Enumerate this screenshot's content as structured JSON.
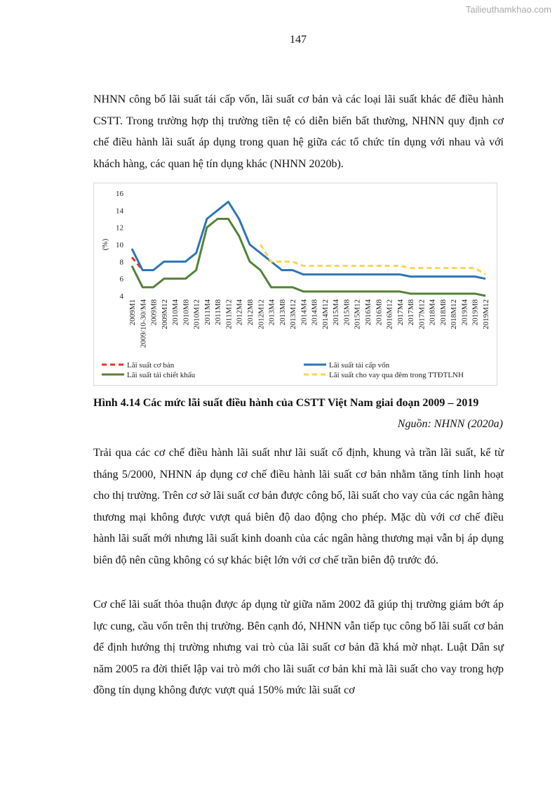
{
  "watermark": "Tailieuthamkhao.com",
  "page_number": "147",
  "paragraphs_before": [
    "NHNN công bố lãi suất tái cấp vốn, lãi suất cơ bản và các loại lãi suất khác để điều hành CSTT. Trong trường hợp thị trường tiền tệ có diễn biến bất thường, NHNN quy định cơ chế điều hành lãi suất áp dụng trong quan hệ giữa các tổ chức tín dụng với nhau và với khách hàng, các quan hệ tín dụng khác (NHNN 2020b)."
  ],
  "caption": "Hình 4.14 Các mức lãi suất điều hành của CSTT Việt Nam giai đoạn 2009 – 2019",
  "source": "Nguồn: NHNN (2020a)",
  "paragraphs_after": [
    "Trải qua các cơ chế điều hành lãi suất như lãi suất cố định, khung và trần lãi suất, kể từ tháng 5/2000, NHNN áp dụng cơ chế điều hành lãi suất cơ bản nhằm tăng tính linh hoạt cho thị trường. Trên cơ sở lãi suất cơ bản được công bố, lãi suất cho vay của các ngân hàng thương mại không được vượt quá biên độ dao động cho phép. Mặc dù với cơ chế điều hành lãi suất mới nhưng lãi suất kinh doanh của các ngân hàng thương mại vẫn bị áp dụng biên độ nên cũng không có sự khác biệt lớn với cơ chế trần biên độ trước đó.",
    "Cơ chế lãi suất thỏa thuận được áp dụng từ giữa năm 2002 đã giúp thị trường giảm bớt áp lực cung, cầu vốn trên thị trường. Bên cạnh đó, NHNN vẫn tiếp tục công bố lãi suất cơ bản để định hướng thị trường nhưng vai trò của lãi suất cơ bản đã khá mờ nhạt. Luật Dân sự năm 2005 ra đời thiết lập vai trò mới cho lãi suất cơ bản khi mà lãi suất cho vay trong hợp đồng tín dụng không được vượt quá 150% mức lãi suất cơ"
  ],
  "chart_data": {
    "type": "line",
    "y_label": "(%)",
    "categories": [
      "2009M1",
      "2009/10-30/M4",
      "2009M8",
      "2009M12",
      "2010M4",
      "2010M8",
      "2010M12",
      "2011M4",
      "2011M8",
      "2011M12",
      "2012M4",
      "2012M8",
      "2012M12",
      "2013M4",
      "2013M8",
      "2013M12",
      "2014M4",
      "2014M8",
      "2014M12",
      "2015M4",
      "2015M8",
      "2015M12",
      "2016M4",
      "2016M8",
      "2016M12",
      "2017M4",
      "2017M8",
      "2017M12",
      "2018M4",
      "2018M8",
      "2018M12",
      "2019M4",
      "2019M8",
      "2019M12"
    ],
    "ylim": [
      4,
      16
    ],
    "yticks": [
      4,
      6,
      8,
      10,
      12,
      14,
      16
    ],
    "grid": false,
    "series": [
      {
        "name": "Lãi suất cơ bản",
        "color": "#e8322c",
        "style": "dashed",
        "values": [
          8.5,
          7,
          null,
          null,
          null,
          null,
          null,
          null,
          null,
          null,
          null,
          null,
          null,
          null,
          null,
          null,
          null,
          null,
          null,
          null,
          null,
          null,
          null,
          null,
          null,
          null,
          null,
          null,
          null,
          null,
          null,
          null,
          null,
          null
        ]
      },
      {
        "name": "Lãi suất tái cấp vốn",
        "color": "#2e75b6",
        "style": "solid",
        "values": [
          9.5,
          7,
          7,
          8,
          8,
          8,
          9,
          13,
          14,
          15,
          13,
          10,
          9,
          8,
          7,
          7,
          6.5,
          6.5,
          6.5,
          6.5,
          6.5,
          6.5,
          6.5,
          6.5,
          6.5,
          6.5,
          6.25,
          6.25,
          6.25,
          6.25,
          6.25,
          6.25,
          6.25,
          6
        ]
      },
      {
        "name": "Lãi suất tái chiết khấu",
        "color": "#548235",
        "style": "solid",
        "values": [
          7.5,
          5,
          5,
          6,
          6,
          6,
          7,
          12,
          13,
          13,
          11,
          8,
          7,
          5,
          5,
          5,
          4.5,
          4.5,
          4.5,
          4.5,
          4.5,
          4.5,
          4.5,
          4.5,
          4.5,
          4.5,
          4.25,
          4.25,
          4.25,
          4.25,
          4.25,
          4.25,
          4.25,
          4
        ]
      },
      {
        "name": "Lãi suất cho vay qua đêm trong TTĐTLNH",
        "color": "#ffd34d",
        "style": "dashed",
        "values": [
          null,
          null,
          null,
          null,
          null,
          null,
          null,
          null,
          null,
          null,
          null,
          null,
          10,
          8,
          8,
          8,
          7.5,
          7.5,
          7.5,
          7.5,
          7.5,
          7.5,
          7.5,
          7.5,
          7.5,
          7.5,
          7.25,
          7.25,
          7.25,
          7.25,
          7.25,
          7.25,
          7.25,
          6.5
        ]
      }
    ]
  }
}
